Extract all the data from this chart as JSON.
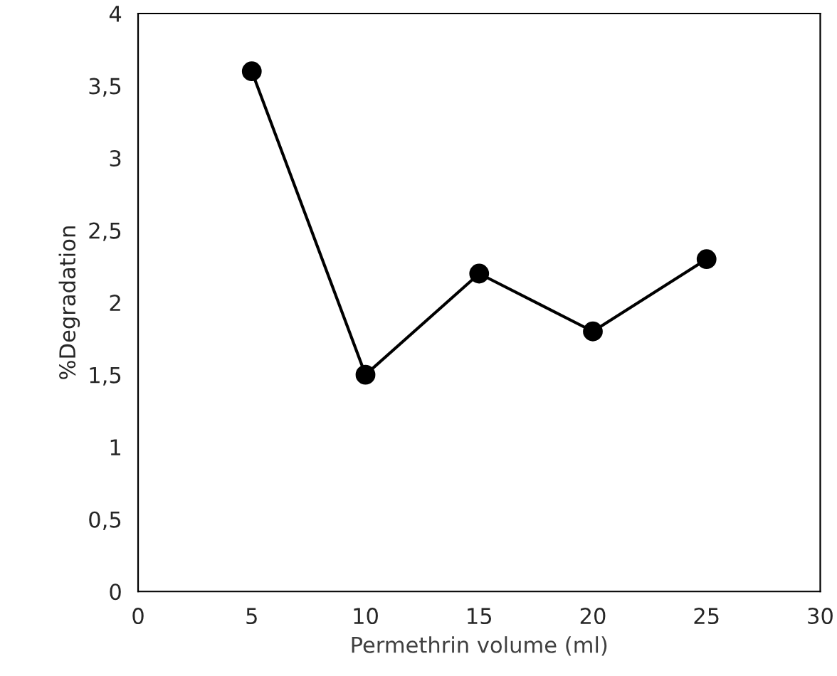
{
  "chart_data": {
    "type": "line",
    "xlabel": "Permethrin volume (ml)",
    "ylabel": "%Degradation",
    "x": [
      5,
      10,
      15,
      20,
      25
    ],
    "series": [
      {
        "color": "#000000",
        "values": [
          3.6,
          1.5,
          2.2,
          1.8,
          2.3
        ]
      }
    ],
    "xlim": [
      0,
      30
    ],
    "xticks": [
      0,
      5,
      10,
      15,
      20,
      25,
      30
    ],
    "ylim": [
      0,
      4
    ],
    "yticks": [
      0,
      {
        "value": 0.5,
        "label": "0,5"
      },
      1,
      {
        "value": 1.5,
        "label": "1,5"
      },
      2,
      {
        "value": 2.5,
        "label": "2,5"
      },
      3,
      {
        "value": 3.5,
        "label": "3,5"
      },
      4
    ],
    "marker": "circle",
    "line_style": "solid",
    "grid": false,
    "legend": false
  }
}
